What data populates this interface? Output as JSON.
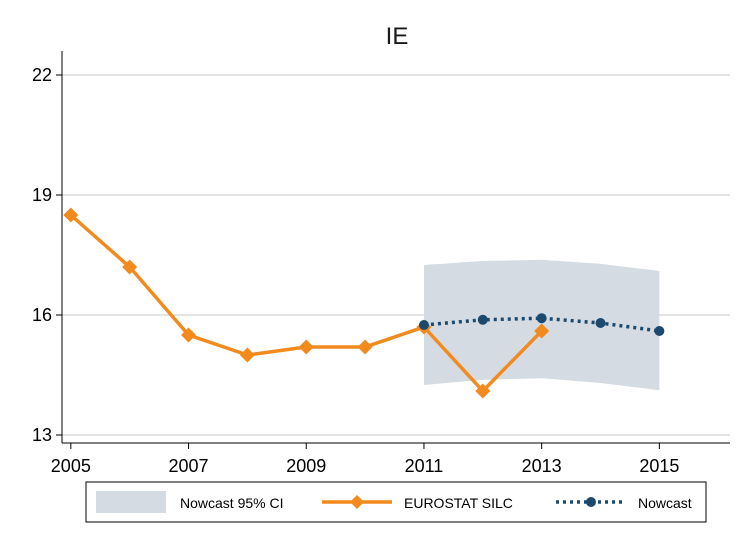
{
  "chart_data": {
    "type": "line",
    "title": "IE",
    "xlabel": "",
    "ylabel": "",
    "xlim": [
      2004.85,
      2016.2
    ],
    "ylim": [
      12.8,
      22.6
    ],
    "x_ticks": [
      2005,
      2007,
      2009,
      2011,
      2013,
      2015
    ],
    "x_tick_labels": [
      "2005",
      "2007",
      "2009",
      "2011",
      "2013",
      "2015"
    ],
    "y_ticks": [
      13,
      16,
      19,
      22
    ],
    "y_tick_labels": [
      "13",
      "16",
      "19",
      "22"
    ],
    "grid": "horizontal",
    "legend_position": "bottom",
    "legend": [
      {
        "label": "Nowcast 95% CI",
        "kind": "band"
      },
      {
        "label": "EUROSTAT SILC",
        "kind": "line-diamond"
      },
      {
        "label": "Nowcast",
        "kind": "dotted-circle"
      }
    ],
    "band": {
      "name": "Nowcast 95% CI",
      "color": "#d5dbe3",
      "x": [
        2011,
        2012,
        2013,
        2014,
        2015
      ],
      "upper": [
        17.25,
        17.35,
        17.38,
        17.28,
        17.1
      ],
      "lower": [
        14.25,
        14.38,
        14.42,
        14.3,
        14.12
      ]
    },
    "series": [
      {
        "name": "EUROSTAT SILC",
        "color": "#f28a1e",
        "style": "solid",
        "marker": "diamond",
        "x": [
          2005,
          2006,
          2007,
          2008,
          2009,
          2010,
          2011,
          2012,
          2013
        ],
        "values": [
          18.5,
          17.2,
          15.5,
          15.0,
          15.2,
          15.2,
          15.7,
          14.1,
          15.6
        ]
      },
      {
        "name": "Nowcast",
        "color": "#1c4a6e",
        "style": "dotted",
        "marker": "circle",
        "x": [
          2011,
          2012,
          2013,
          2014,
          2015
        ],
        "values": [
          15.75,
          15.88,
          15.92,
          15.8,
          15.6
        ]
      }
    ]
  }
}
